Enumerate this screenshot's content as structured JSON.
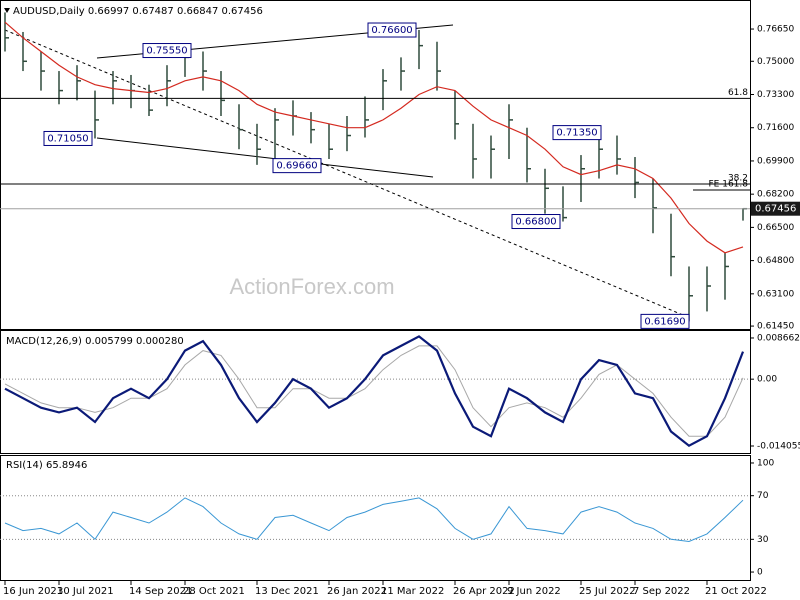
{
  "chart_data": [
    {
      "type": "ohlc",
      "title": "AUDUSD,Daily 0.66997 0.67487 0.66847 0.67456",
      "watermark": "ActionForex.com",
      "categories": [
        "16 Jun 2021",
        null,
        null,
        "30 Jul 2021",
        null,
        null,
        null,
        "14 Sep 2021",
        null,
        null,
        "28 Oct 2021",
        null,
        null,
        null,
        "13 Dec 2021",
        null,
        null,
        null,
        "26 Jan 2022",
        null,
        null,
        "11 Mar 2022",
        null,
        null,
        null,
        "26 Apr 2022",
        null,
        null,
        "9 Jun 2022",
        null,
        null,
        null,
        "25 Jul 2022",
        null,
        null,
        "7 Sep 2022",
        null,
        null,
        null,
        "21 Oct 2022",
        null,
        null
      ],
      "high": [
        0.775,
        0.765,
        0.755,
        0.745,
        0.748,
        0.735,
        0.745,
        0.743,
        0.738,
        0.748,
        0.757,
        0.755,
        0.745,
        0.728,
        0.718,
        0.726,
        0.73,
        0.724,
        0.718,
        0.722,
        0.732,
        0.746,
        0.752,
        0.766,
        0.76,
        0.735,
        0.718,
        0.712,
        0.728,
        0.716,
        0.695,
        0.686,
        0.702,
        0.713,
        0.712,
        0.701,
        0.69,
        0.672,
        0.645,
        0.645,
        0.652,
        0.67487
      ],
      "low": [
        0.755,
        0.745,
        0.735,
        0.728,
        0.73,
        0.7105,
        0.728,
        0.726,
        0.722,
        0.727,
        0.742,
        0.735,
        0.722,
        0.705,
        0.697,
        0.6966,
        0.712,
        0.708,
        0.7,
        0.704,
        0.711,
        0.725,
        0.735,
        0.746,
        0.735,
        0.71,
        0.69,
        0.69,
        0.7,
        0.688,
        0.672,
        0.668,
        0.678,
        0.69,
        0.692,
        0.68,
        0.662,
        0.64,
        0.6169,
        0.622,
        0.628,
        0.66847
      ],
      "close": [
        0.762,
        0.75,
        0.745,
        0.735,
        0.74,
        0.72,
        0.74,
        0.735,
        0.725,
        0.74,
        0.752,
        0.745,
        0.73,
        0.715,
        0.705,
        0.72,
        0.722,
        0.715,
        0.705,
        0.712,
        0.72,
        0.74,
        0.745,
        0.758,
        0.745,
        0.718,
        0.7,
        0.705,
        0.72,
        0.695,
        0.685,
        0.67,
        0.695,
        0.705,
        0.7,
        0.688,
        0.675,
        0.65,
        0.63,
        0.635,
        0.645,
        0.67456
      ],
      "color": "#2f4a3c",
      "ma_values": [
        0.77,
        0.762,
        0.755,
        0.748,
        0.742,
        0.738,
        0.736,
        0.735,
        0.734,
        0.736,
        0.74,
        0.742,
        0.74,
        0.735,
        0.728,
        0.724,
        0.722,
        0.72,
        0.718,
        0.716,
        0.716,
        0.72,
        0.726,
        0.733,
        0.737,
        0.735,
        0.727,
        0.72,
        0.716,
        0.712,
        0.705,
        0.696,
        0.692,
        0.694,
        0.697,
        0.695,
        0.69,
        0.68,
        0.667,
        0.658,
        0.652,
        0.655
      ],
      "ma_color": "#d42a20",
      "ylim": [
        0.613,
        0.7788
      ],
      "yticks": [
        {
          "value": 0.7665,
          "label": "0.76650"
        },
        {
          "value": 0.75,
          "label": "0.75000"
        },
        {
          "value": 0.733,
          "label": "0.73300"
        },
        {
          "value": 0.716,
          "label": "0.71600"
        },
        {
          "value": 0.699,
          "label": "0.69900"
        },
        {
          "value": 0.682,
          "label": "0.68200"
        },
        {
          "value": 0.665,
          "label": "0.66500"
        },
        {
          "value": 0.648,
          "label": "0.64800"
        },
        {
          "value": 0.631,
          "label": "0.63100"
        },
        {
          "value": 0.6145,
          "label": "0.61450"
        }
      ],
      "last_price": 0.67456,
      "hlines": [
        {
          "value": 0.731,
          "label": "61.8"
        },
        {
          "value": 0.6872,
          "label": "38.2"
        },
        {
          "value": 0.6841,
          "label": "FE 161.8"
        }
      ],
      "annotations": [
        {
          "value": 0.7555,
          "label": "0.75550"
        },
        {
          "value": 0.766,
          "label": "0.76600"
        },
        {
          "value": 0.7105,
          "label": "0.71050"
        },
        {
          "value": 0.6966,
          "label": "0.69660"
        },
        {
          "value": 0.668,
          "label": "0.66800"
        },
        {
          "value": 0.7135,
          "label": "0.71350"
        },
        {
          "value": 0.6169,
          "label": "0.61690"
        }
      ]
    },
    {
      "type": "macd",
      "title": "MACD(12,26,9) 0.005799 0.000280",
      "series": [
        {
          "color": "#0b1a78",
          "values": [
            -0.002,
            -0.004,
            -0.006,
            -0.007,
            -0.006,
            -0.009,
            -0.004,
            -0.002,
            -0.004,
            0.0,
            0.006,
            0.008,
            0.003,
            -0.004,
            -0.009,
            -0.005,
            0.0,
            -0.002,
            -0.006,
            -0.004,
            0.0,
            0.005,
            0.007,
            0.009,
            0.006,
            -0.003,
            -0.01,
            -0.012,
            -0.002,
            -0.004,
            -0.007,
            -0.009,
            0.0,
            0.004,
            0.003,
            -0.003,
            -0.004,
            -0.011,
            -0.014,
            -0.012,
            -0.004,
            0.005799
          ]
        },
        {
          "color": "#a8a8a8",
          "values": [
            -0.001,
            -0.003,
            -0.005,
            -0.006,
            -0.006,
            -0.007,
            -0.006,
            -0.004,
            -0.004,
            -0.002,
            0.003,
            0.006,
            0.005,
            0.0,
            -0.006,
            -0.006,
            -0.002,
            -0.002,
            -0.004,
            -0.004,
            -0.002,
            0.002,
            0.005,
            0.007,
            0.007,
            0.002,
            -0.006,
            -0.01,
            -0.006,
            -0.005,
            -0.006,
            -0.008,
            -0.004,
            0.001,
            0.003,
            0.0,
            -0.003,
            -0.008,
            -0.012,
            -0.012,
            -0.008,
            0.00028
          ]
        }
      ],
      "ylim": [
        -0.01553,
        0.01013
      ],
      "yticks": [
        0.008662,
        {
          "value": 0,
          "label": "0.00"
        },
        -0.014055
      ],
      "levels": [
        0
      ]
    },
    {
      "type": "line",
      "title": "RSI(14) 65.8946",
      "color": "#3a97d4",
      "values": [
        45,
        38,
        40,
        35,
        45,
        30,
        55,
        50,
        45,
        55,
        68,
        60,
        45,
        35,
        30,
        50,
        52,
        45,
        38,
        50,
        55,
        62,
        65,
        68,
        58,
        40,
        30,
        35,
        60,
        40,
        38,
        35,
        55,
        60,
        55,
        45,
        40,
        30,
        28,
        35,
        50,
        65.8946
      ],
      "ylim": [
        -7.3,
        106.4
      ],
      "yticks": [
        100,
        70,
        30,
        0
      ],
      "levels": [
        70,
        30
      ]
    }
  ]
}
